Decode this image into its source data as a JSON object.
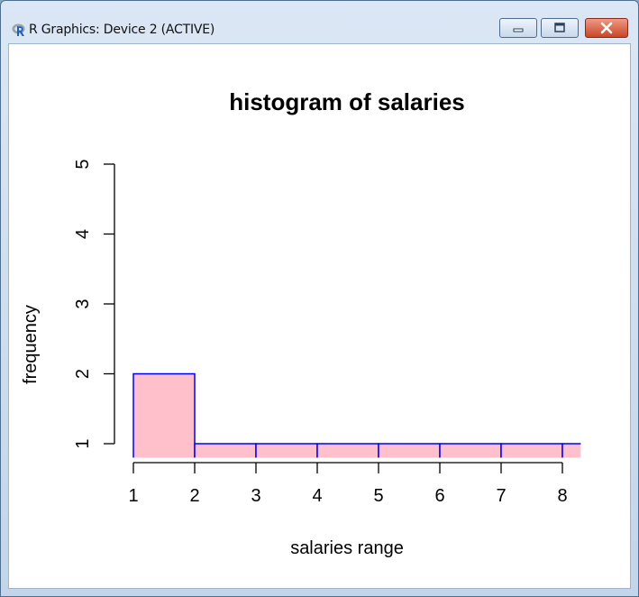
{
  "window": {
    "title": "R Graphics: Device 2 (ACTIVE)",
    "icon": "r-logo-icon",
    "controls": {
      "minimize_icon": "minimize-icon",
      "maximize_icon": "maximize-icon",
      "close_icon": "close-icon"
    }
  },
  "chart_data": {
    "type": "bar",
    "title": "histogram of salaries",
    "xlabel": "salaries range",
    "ylabel": "frequency",
    "bins": [
      {
        "x0": 1,
        "x1": 2,
        "count": 2
      },
      {
        "x0": 2,
        "x1": 3,
        "count": 1
      },
      {
        "x0": 3,
        "x1": 4,
        "count": 1
      },
      {
        "x0": 4,
        "x1": 5,
        "count": 1
      },
      {
        "x0": 5,
        "x1": 6,
        "count": 1
      },
      {
        "x0": 6,
        "x1": 7,
        "count": 1
      },
      {
        "x0": 7,
        "x1": 8,
        "count": 1
      },
      {
        "x0": 8,
        "x1": 8.3,
        "count": 1
      }
    ],
    "xticks": [
      1,
      2,
      3,
      4,
      5,
      6,
      7,
      8
    ],
    "yticks": [
      1,
      2,
      3,
      4,
      5
    ],
    "xlim": [
      1,
      8.3
    ],
    "ylim": [
      0.8,
      5
    ],
    "bar_fill": "#ffc0cb",
    "bar_border": "#0000ff",
    "grid": false,
    "legend": "none"
  }
}
